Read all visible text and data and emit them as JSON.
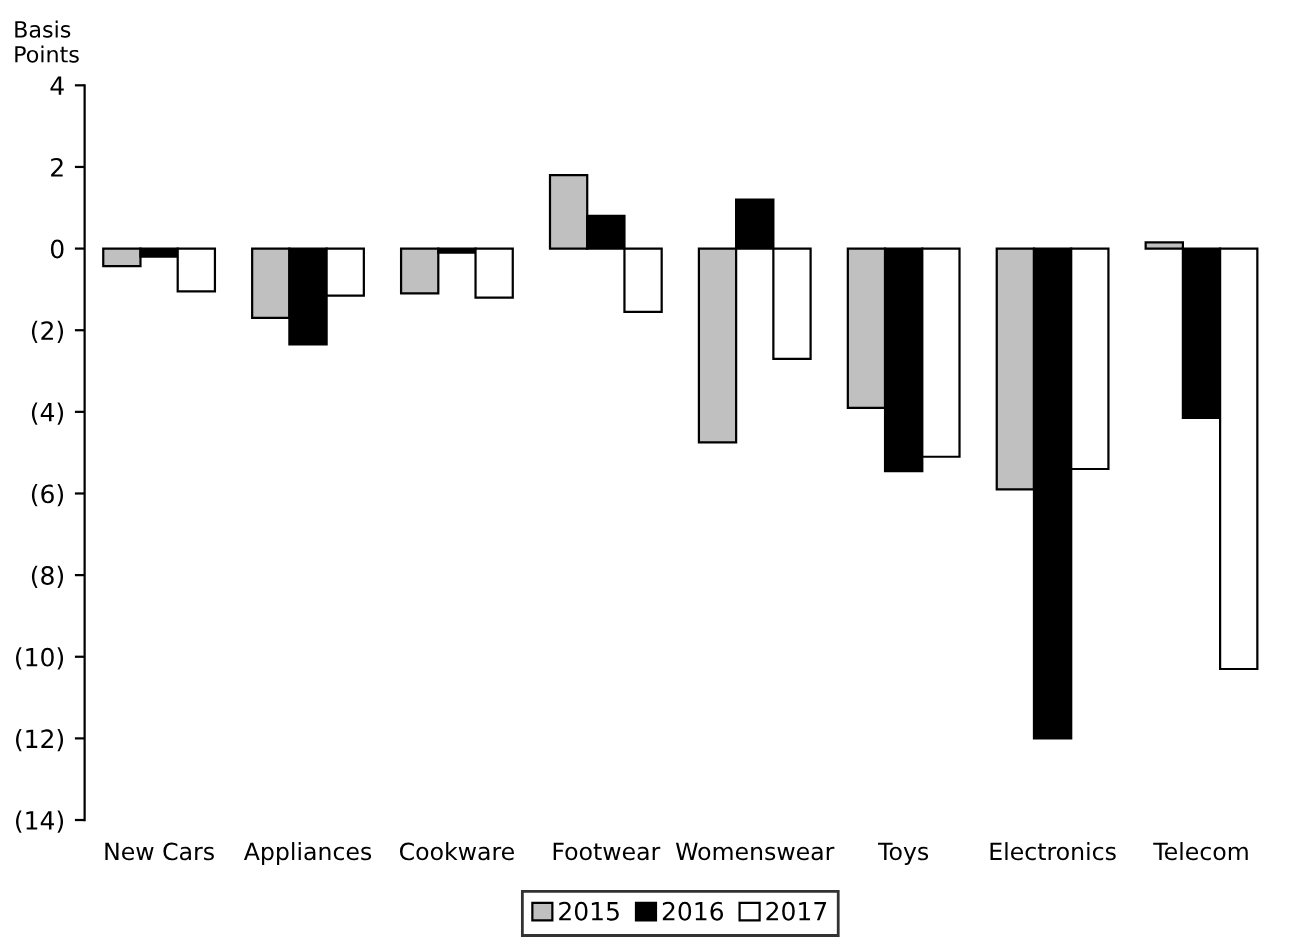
{
  "chart_data": {
    "type": "bar",
    "ylabel": "Basis\nPoints",
    "categories": [
      "New Cars",
      "Appliances",
      "Cookware",
      "Footwear",
      "Womenswear",
      "Toys",
      "Electronics",
      "Telecom"
    ],
    "series": [
      {
        "name": "2015",
        "color": "#c0c0c0",
        "values": [
          -0.43,
          -1.7,
          -1.1,
          1.8,
          -4.75,
          -3.9,
          -5.9,
          0.15
        ]
      },
      {
        "name": "2016",
        "color": "#000000",
        "values": [
          -0.2,
          -2.35,
          -0.1,
          0.8,
          1.2,
          -5.45,
          -12.0,
          -4.15
        ]
      },
      {
        "name": "2017",
        "color": "#ffffff",
        "values": [
          -1.05,
          -1.15,
          -1.2,
          -1.55,
          -2.7,
          -5.1,
          -5.4,
          -10.3
        ]
      }
    ],
    "ylim": [
      -14,
      4
    ],
    "yticks": [
      {
        "value": -14,
        "label": "(14)"
      },
      {
        "value": -12,
        "label": "(12)"
      },
      {
        "value": -10,
        "label": "(10)"
      },
      {
        "value": -8,
        "label": "(8)"
      },
      {
        "value": -6,
        "label": "(6)"
      },
      {
        "value": -4,
        "label": "(4)"
      },
      {
        "value": -2,
        "label": "(2)"
      },
      0,
      2,
      4
    ],
    "legend": "bottom"
  }
}
